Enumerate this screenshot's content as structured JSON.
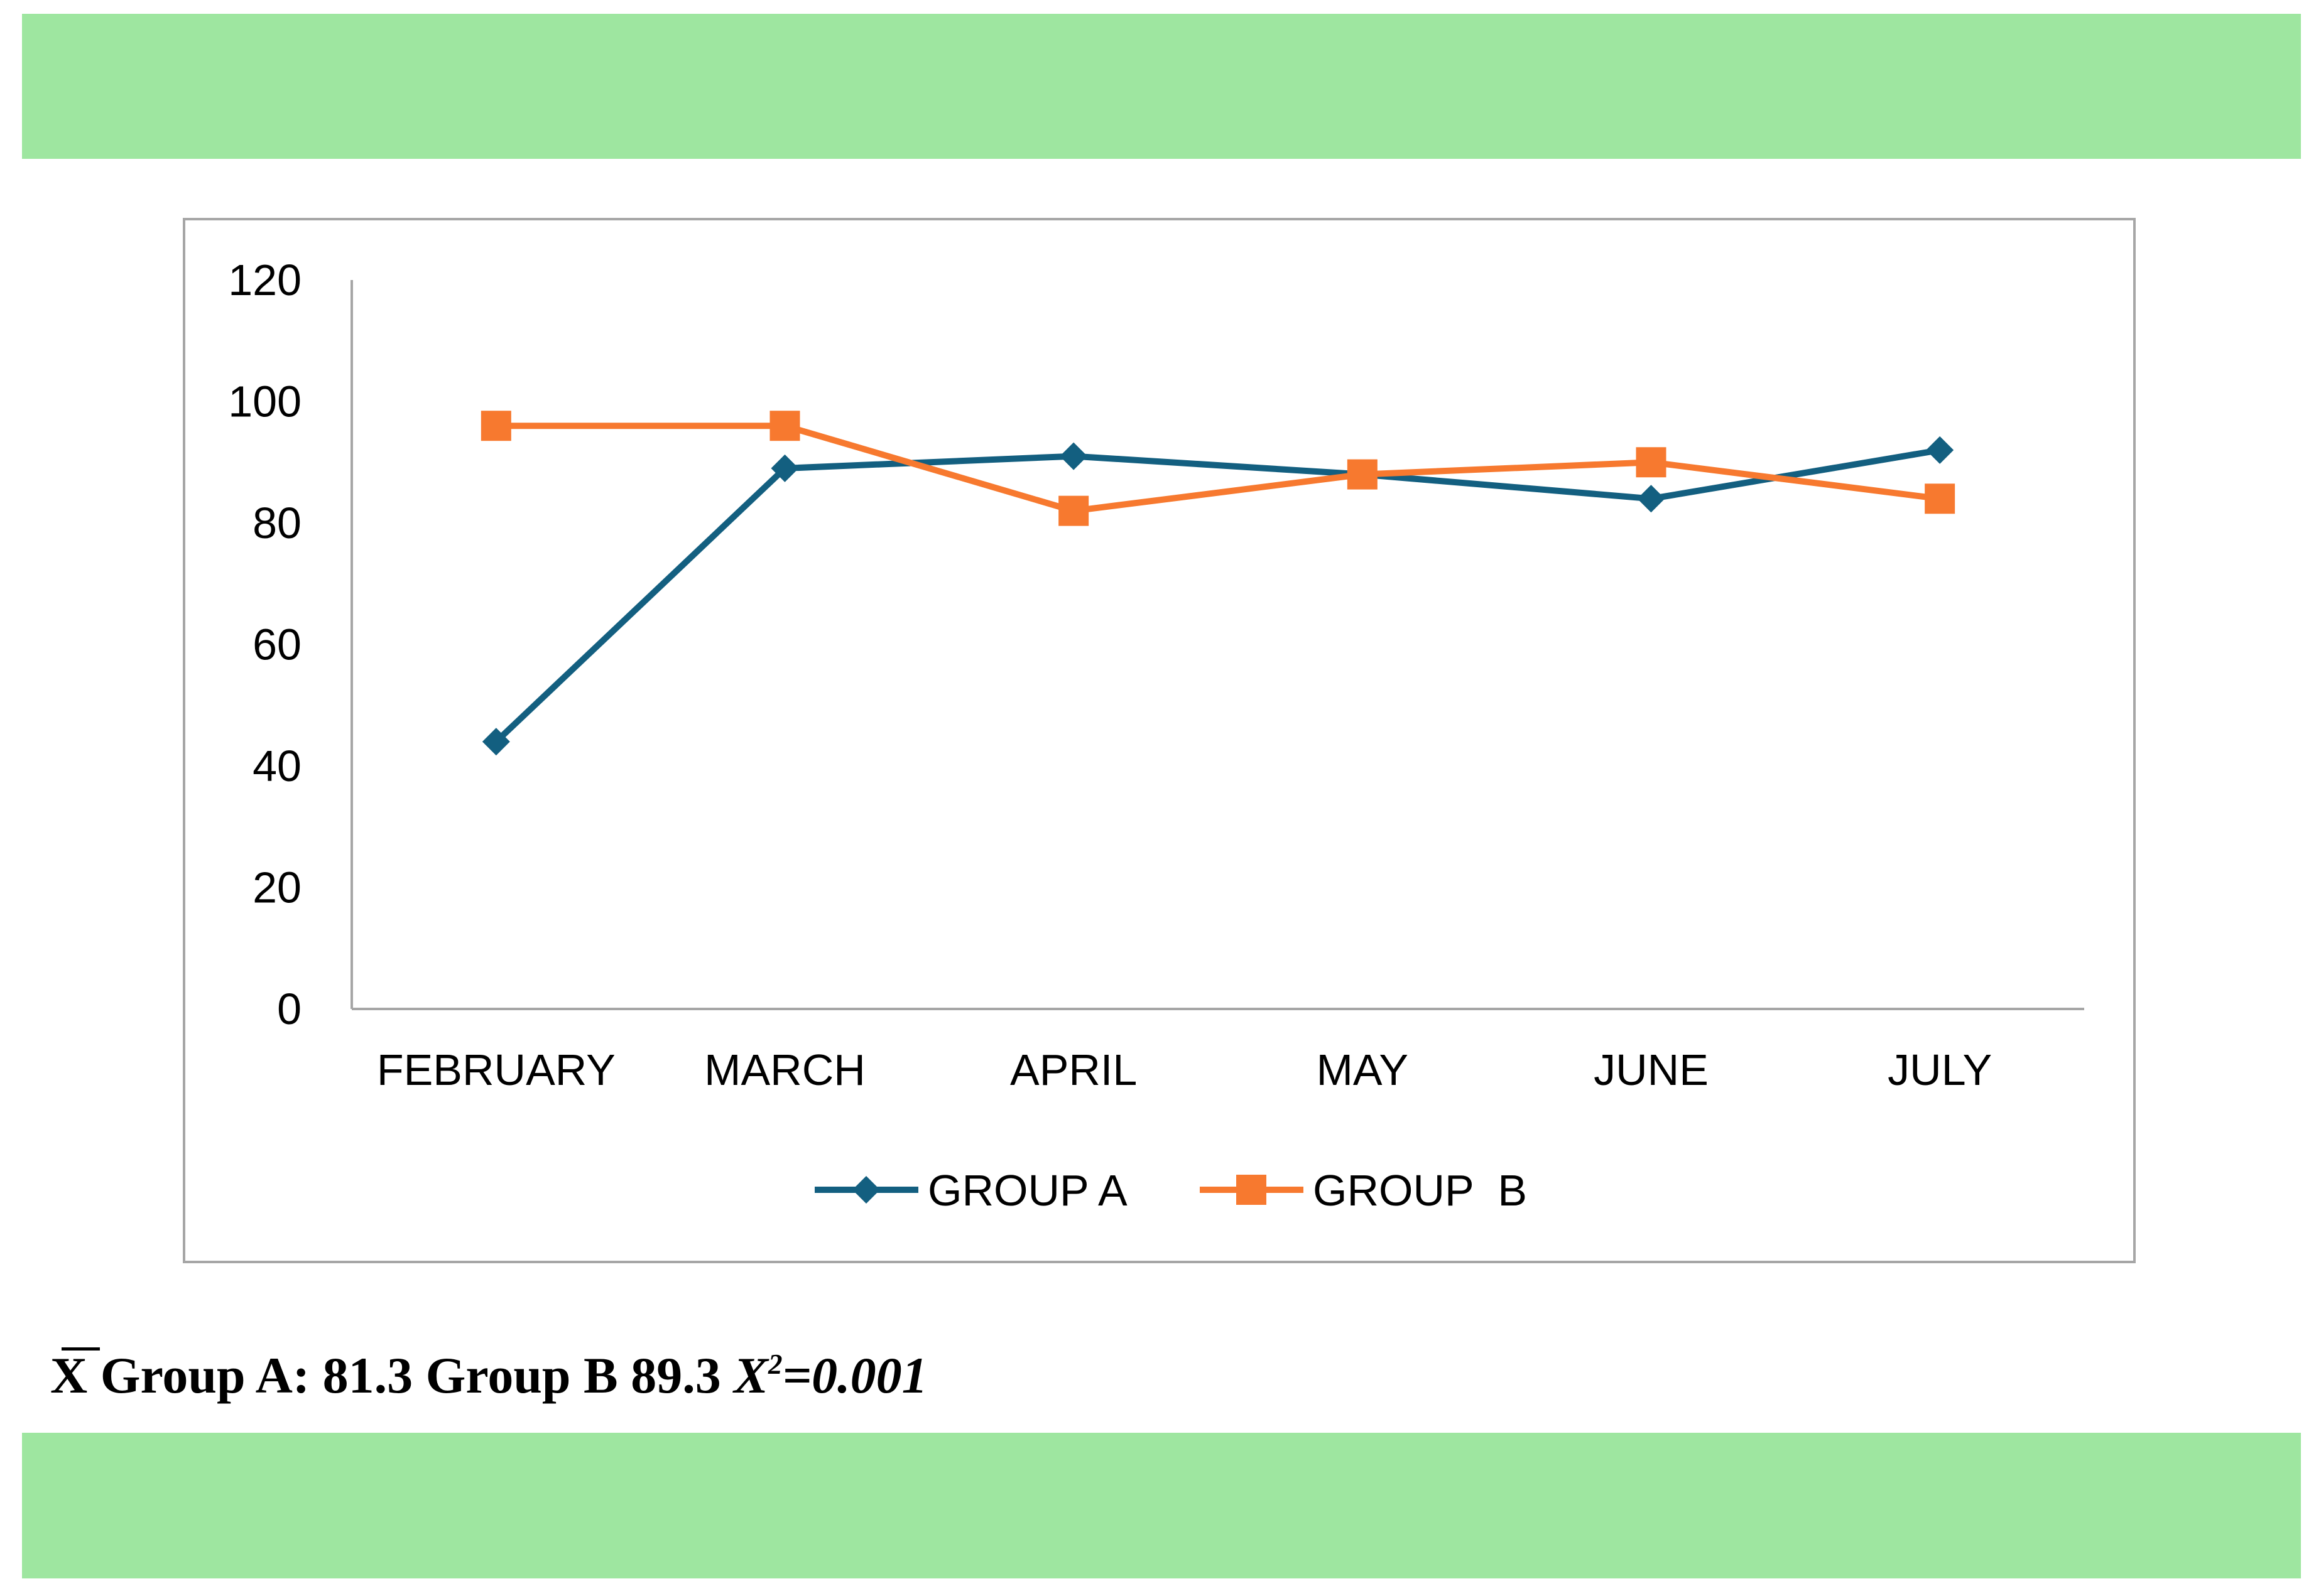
{
  "colors": {
    "band": "#9ee6a0",
    "group_a": "#135f80",
    "group_b": "#f7792f",
    "axis": "#a6a6a6"
  },
  "chart_data": {
    "type": "line",
    "categories": [
      "FEBRUARY",
      "MARCH",
      "APRIL",
      "MAY",
      "JUNE",
      "JULY"
    ],
    "series": [
      {
        "name": "GROUP A",
        "marker": "diamond",
        "color": "#135f80",
        "values": [
          44,
          89,
          91,
          88,
          84,
          92
        ]
      },
      {
        "name": "GROUP  B",
        "marker": "square",
        "color": "#f7792f",
        "values": [
          96,
          96,
          82,
          88,
          90,
          84
        ]
      }
    ],
    "yticks": [
      "0",
      "20",
      "40",
      "60",
      "80",
      "100",
      "120"
    ],
    "ylim": [
      0,
      120
    ],
    "grid": false,
    "legend_position": "bottom"
  },
  "footer": {
    "mean_symbol": "X",
    "group_a_label": "Group A:",
    "group_a_value": "81.3",
    "group_b_label": "Group B",
    "group_b_value": "89.3",
    "chi_symbol": "X",
    "chi_exponent": "2",
    "chi_value": "=0.001"
  }
}
